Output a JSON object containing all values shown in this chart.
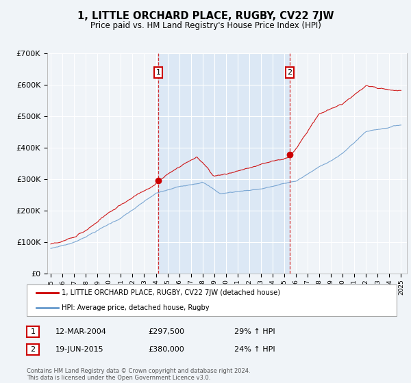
{
  "title": "1, LITTLE ORCHARD PLACE, RUGBY, CV22 7JW",
  "subtitle": "Price paid vs. HM Land Registry's House Price Index (HPI)",
  "legend_line1": "1, LITTLE ORCHARD PLACE, RUGBY, CV22 7JW (detached house)",
  "legend_line2": "HPI: Average price, detached house, Rugby",
  "annotation1_label": "1",
  "annotation1_date": "12-MAR-2004",
  "annotation1_price": "£297,500",
  "annotation1_hpi": "29% ↑ HPI",
  "annotation1_year": 2004.2,
  "annotation1_value": 297500,
  "annotation2_label": "2",
  "annotation2_date": "19-JUN-2015",
  "annotation2_price": "£380,000",
  "annotation2_hpi": "24% ↑ HPI",
  "annotation2_year": 2015.47,
  "annotation2_value": 380000,
  "footer": "Contains HM Land Registry data © Crown copyright and database right 2024.\nThis data is licensed under the Open Government Licence v3.0.",
  "hpi_color": "#6699cc",
  "price_color": "#cc0000",
  "shade_color": "#dce8f5",
  "background_color": "#f0f4f8",
  "ylim": [
    0,
    700000
  ],
  "yticks": [
    0,
    100000,
    200000,
    300000,
    400000,
    500000,
    600000,
    700000
  ],
  "ytick_labels": [
    "£0",
    "£100K",
    "£200K",
    "£300K",
    "£400K",
    "£500K",
    "£600K",
    "£700K"
  ],
  "xlim_start": 1994.7,
  "xlim_end": 2025.5
}
